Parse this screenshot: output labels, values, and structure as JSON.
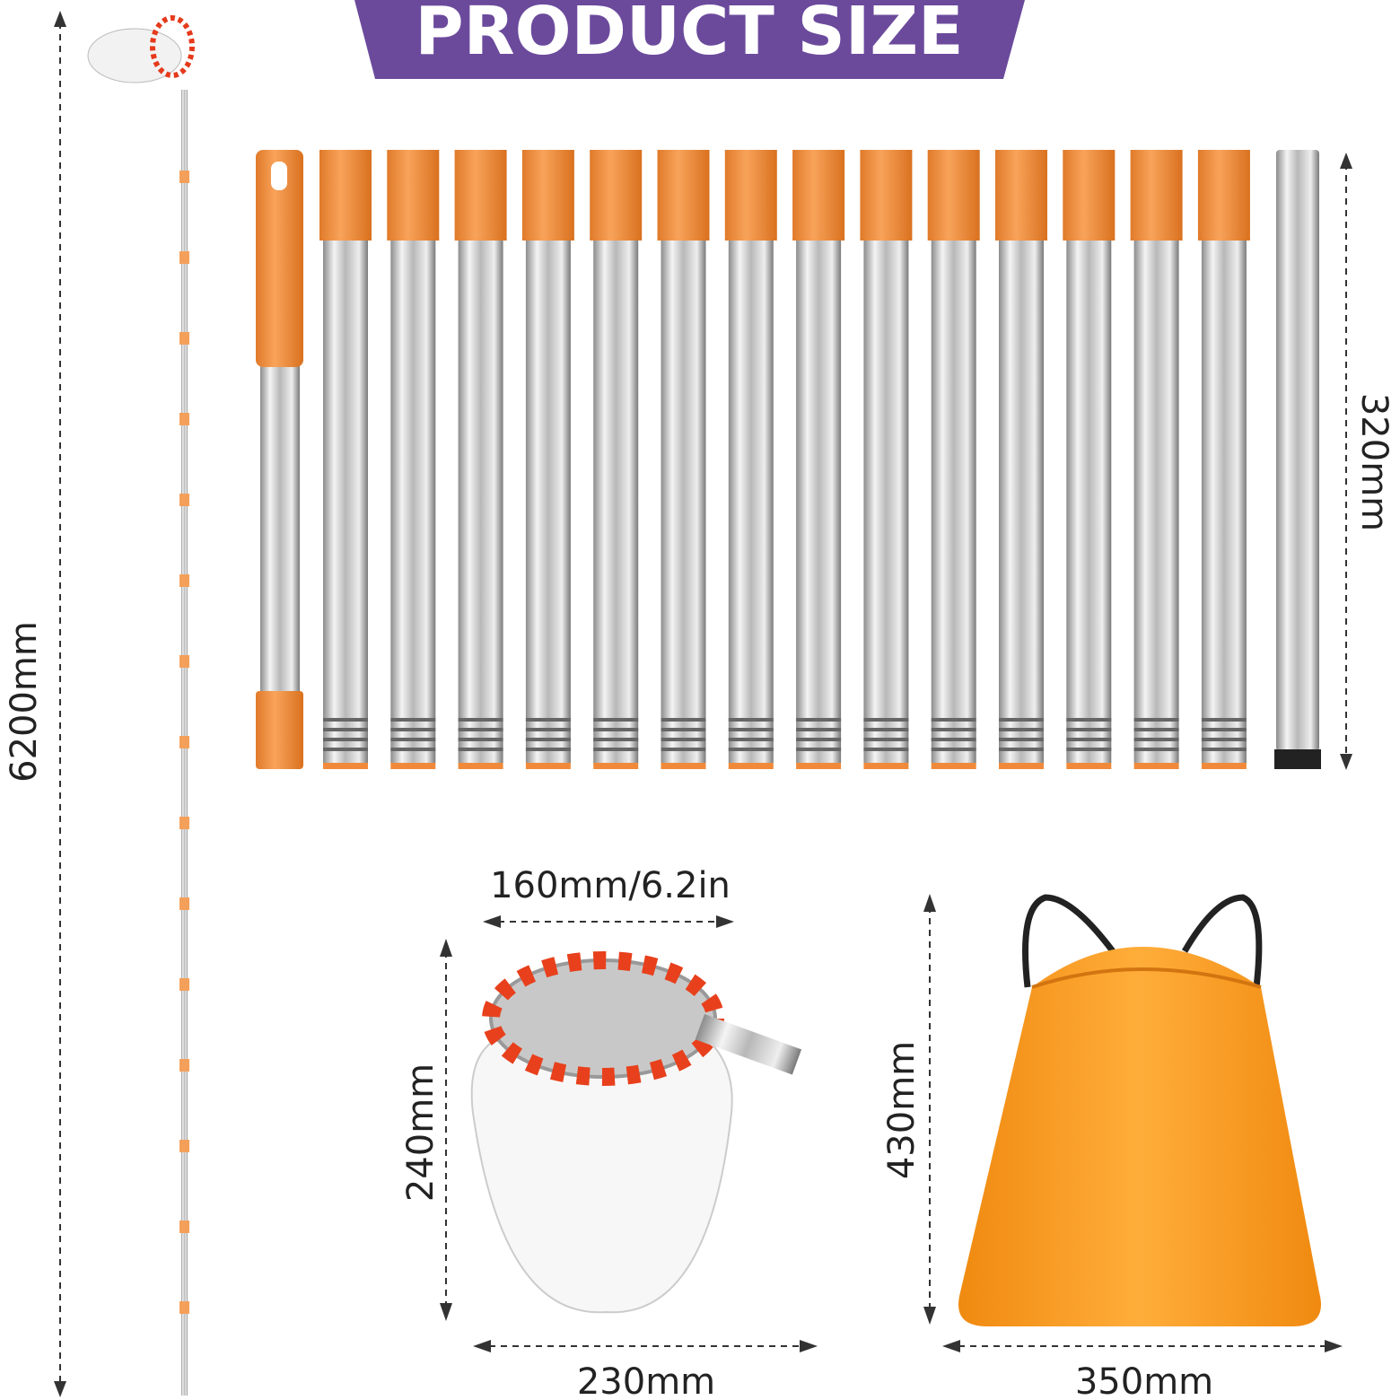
{
  "header": {
    "title": "PRODUCT SIZE"
  },
  "dimensions": {
    "total_length": "6200mm",
    "section_length": "320mm",
    "basket_diameter": "160mm/6.2in",
    "basket_height": "240mm",
    "bag_height": "430mm",
    "basket_width": "230mm",
    "bag_width": "350mm"
  }
}
